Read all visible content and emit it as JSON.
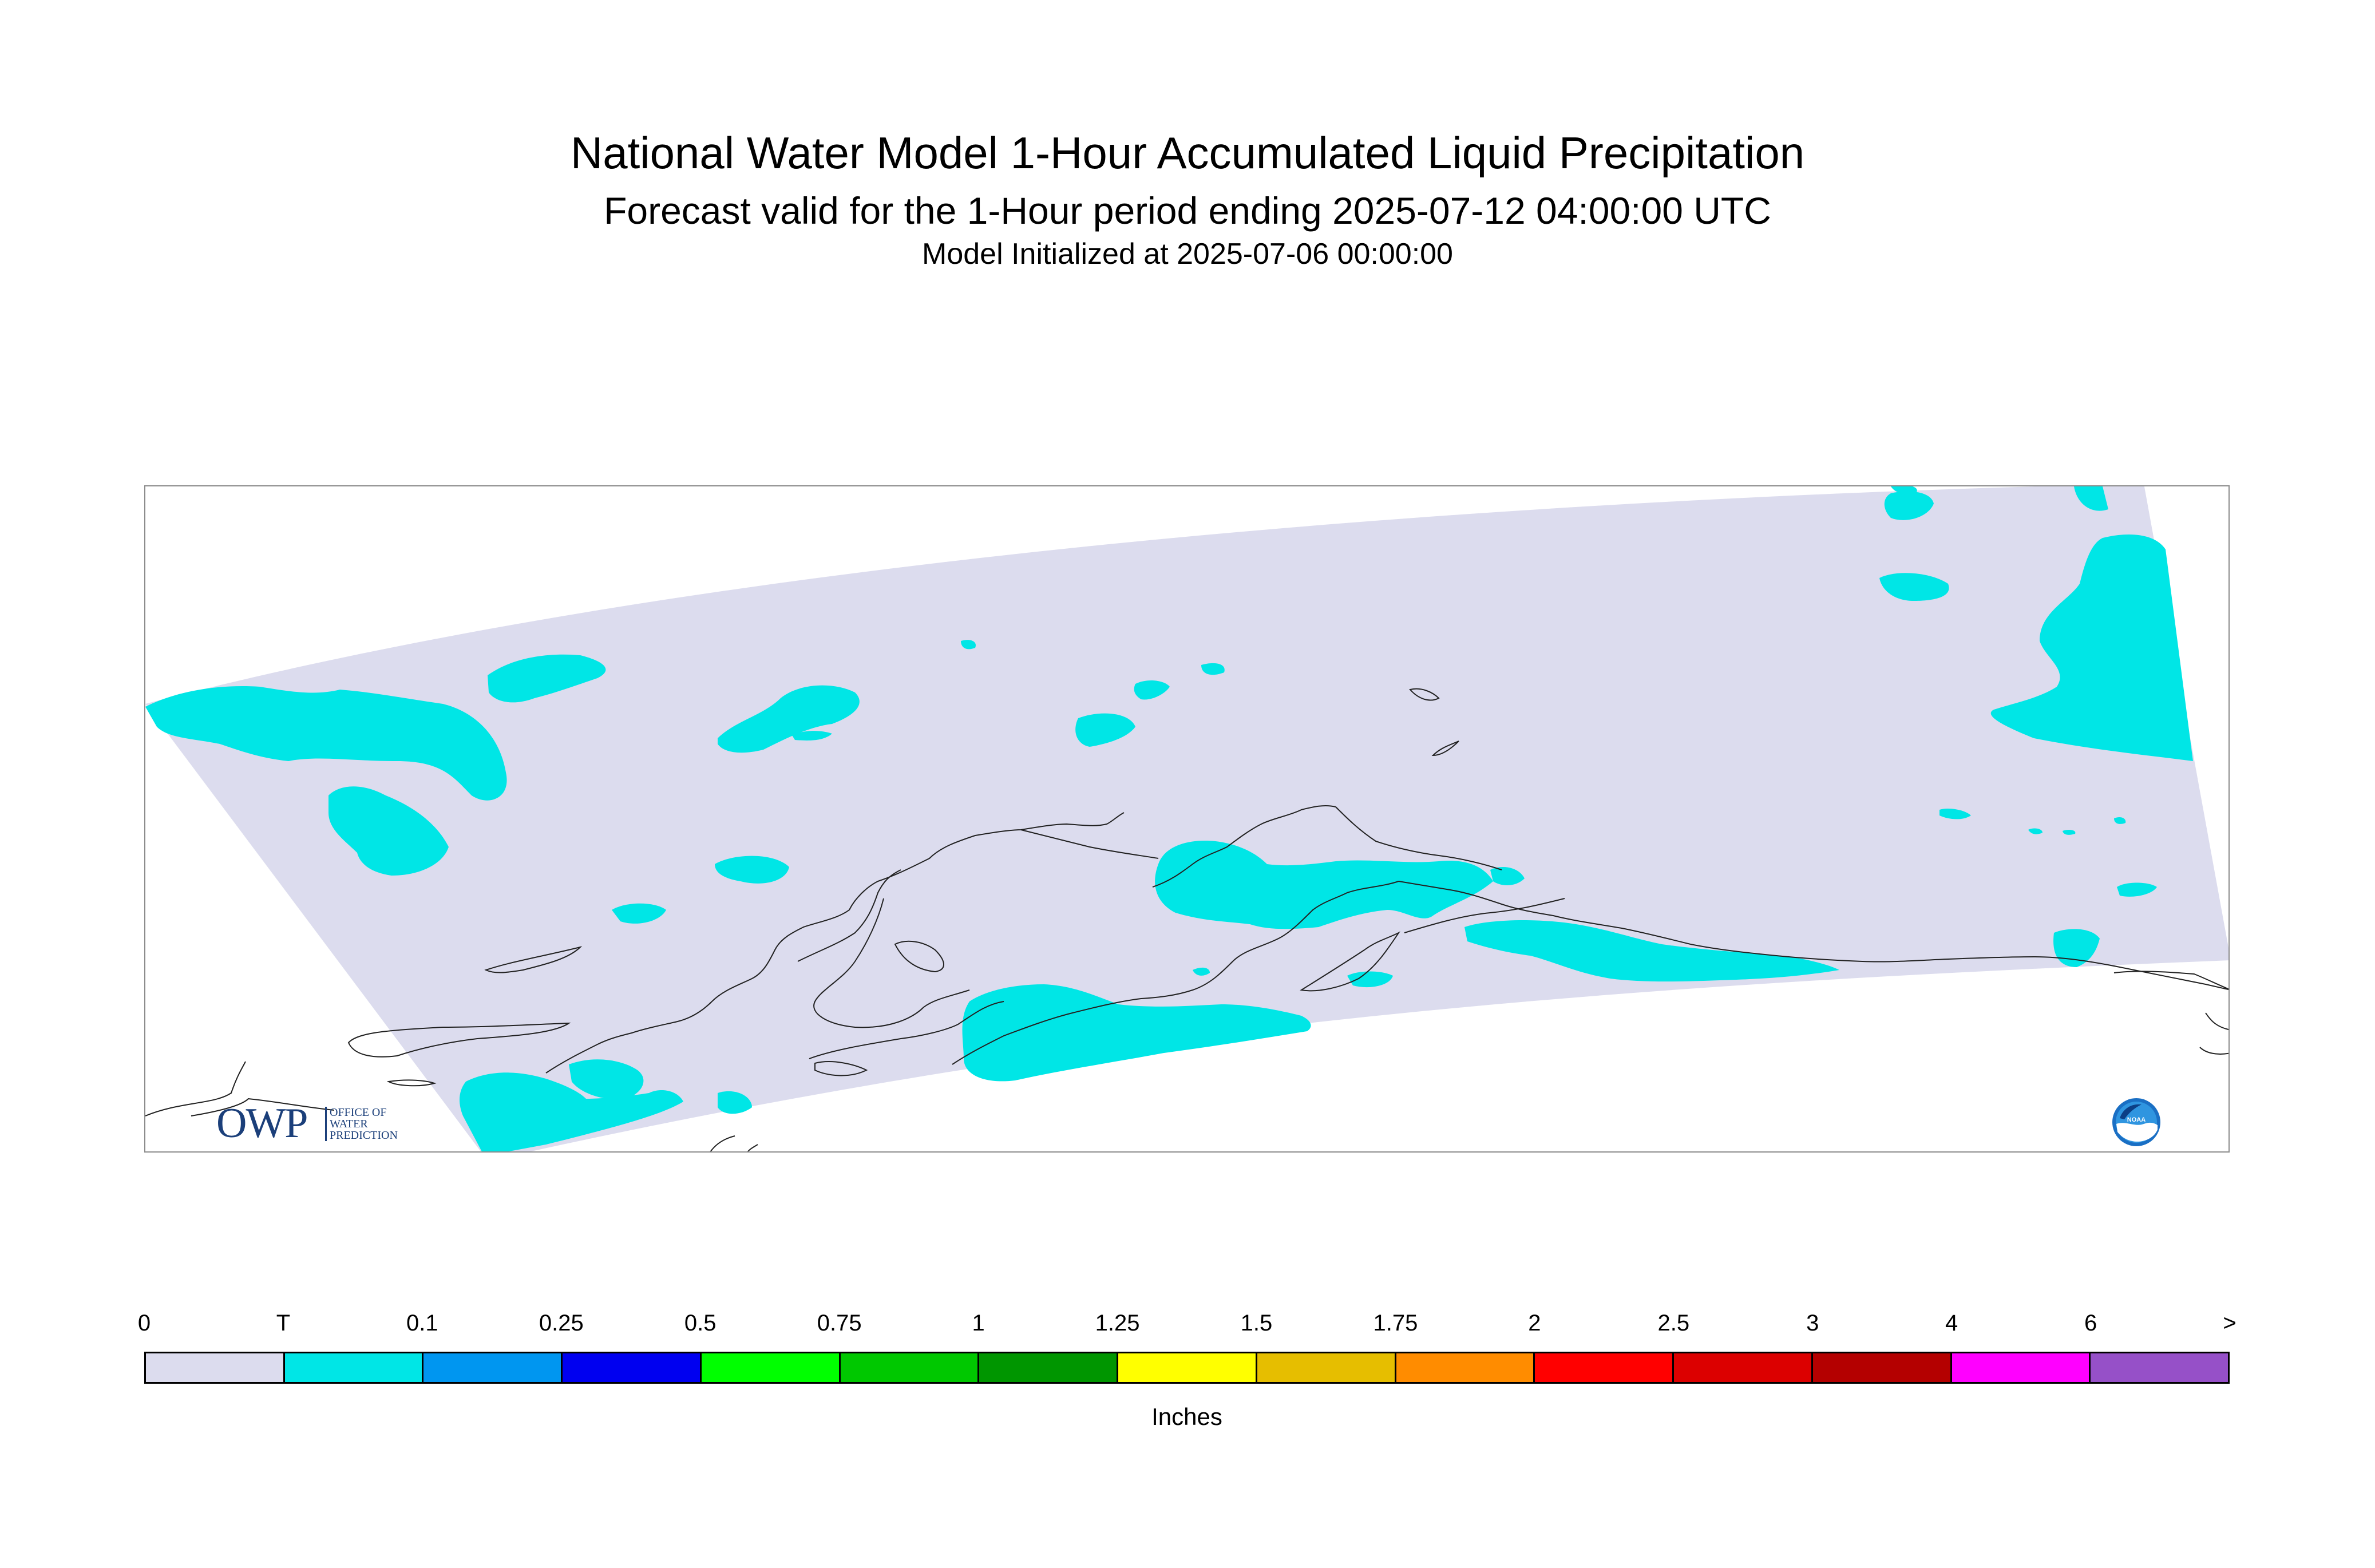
{
  "title": "National Water Model 1-Hour Accumulated Liquid Precipitation",
  "subtitle": "Forecast valid for the 1-Hour period ending 2025-07-12 04:00:00 UTC",
  "initialized": "Model Initialized at 2025-07-06 00:00:00",
  "map": {
    "domain_fill": "#dcdcee",
    "trace_fill": "#00e6e6",
    "coastline_color": "#222222"
  },
  "logos": {
    "owp": {
      "big_text": "OWP",
      "small_lines": [
        "OFFICE OF",
        "WATER",
        "PREDICTION"
      ],
      "color": "#1b3f7a"
    },
    "noaa": {
      "icon": "noaa-icon",
      "text": "NOAA"
    }
  },
  "legend": {
    "tick_labels": [
      "0",
      "T",
      "0.1",
      "0.25",
      "0.5",
      "0.75",
      "1",
      "1.25",
      "1.5",
      "1.75",
      "2",
      "2.5",
      "3",
      "4",
      "6",
      ">"
    ],
    "colors": [
      "#dcdcee",
      "#00e6e6",
      "#0096f0",
      "#0000f0",
      "#00ff00",
      "#00c800",
      "#009600",
      "#ffff00",
      "#e6be00",
      "#ff8c00",
      "#ff0000",
      "#dc0000",
      "#b40000",
      "#ff00ff",
      "#9650c8"
    ],
    "unit": "Inches"
  }
}
